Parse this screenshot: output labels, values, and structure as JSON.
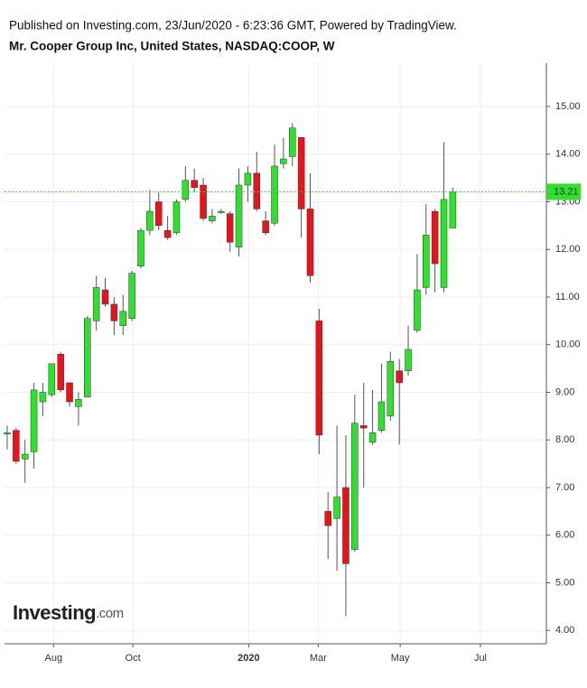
{
  "header": {
    "published": "Published on Investing.com, 23/Jun/2020 - 6:23:36 GMT, Powered by TradingView.",
    "instrument": "Mr. Cooper Group Inc, United States, NASDAQ:COOP, W"
  },
  "logo": {
    "brand": "Investing",
    "suffix": ".com"
  },
  "chart_data": {
    "type": "candlestick",
    "open": [
      8.15,
      8.2,
      7.6,
      7.75,
      8.8,
      8.95,
      9.8,
      9.2,
      8.7,
      8.9,
      10.5,
      11.15,
      10.85,
      10.4,
      10.55,
      11.65,
      12.4,
      13.0,
      12.4,
      12.35,
      13.05,
      13.45,
      13.35,
      12.6,
      12.8,
      12.75,
      12.05,
      13.35,
      13.6,
      12.6,
      12.55,
      13.8,
      13.95,
      14.35,
      12.85,
      10.5,
      6.5,
      6.35,
      7.0,
      5.7,
      8.3,
      7.95,
      8.2,
      8.5,
      9.45,
      9.45,
      10.3,
      11.2,
      12.8,
      11.2,
      12.45
    ],
    "high": [
      8.3,
      8.25,
      8.0,
      9.2,
      9.2,
      9.6,
      9.85,
      9.2,
      9.0,
      10.6,
      11.45,
      11.4,
      11.0,
      11.05,
      11.55,
      12.45,
      13.25,
      13.2,
      12.7,
      13.05,
      13.75,
      13.7,
      13.5,
      12.85,
      12.85,
      12.8,
      13.7,
      13.75,
      14.05,
      12.8,
      14.2,
      14.35,
      14.65,
      14.35,
      13.6,
      10.75,
      6.9,
      8.3,
      8.1,
      8.95,
      9.2,
      9.05,
      9.6,
      9.85,
      9.7,
      10.4,
      11.9,
      12.95,
      12.85,
      14.25,
      13.3
    ],
    "low": [
      7.8,
      7.5,
      7.1,
      7.4,
      8.5,
      8.9,
      9.0,
      8.7,
      8.3,
      8.9,
      10.3,
      10.8,
      10.2,
      10.2,
      10.5,
      11.6,
      12.3,
      12.4,
      12.2,
      12.3,
      13.0,
      13.2,
      12.6,
      12.55,
      12.75,
      11.95,
      11.85,
      13.0,
      12.8,
      12.3,
      12.5,
      13.7,
      13.75,
      12.25,
      11.3,
      7.7,
      5.5,
      5.25,
      4.3,
      5.65,
      7.0,
      7.9,
      8.15,
      8.4,
      7.9,
      9.35,
      10.25,
      11.05,
      11.1,
      11.1,
      12.45
    ],
    "close": [
      8.15,
      7.55,
      7.7,
      9.05,
      9.0,
      9.6,
      9.05,
      8.8,
      8.85,
      10.55,
      11.2,
      10.85,
      10.5,
      10.7,
      11.5,
      12.4,
      12.8,
      12.5,
      12.25,
      13.0,
      13.45,
      13.3,
      12.65,
      12.7,
      12.8,
      12.15,
      13.35,
      13.6,
      12.85,
      12.35,
      13.75,
      13.9,
      14.55,
      12.85,
      11.45,
      8.1,
      6.2,
      6.8,
      5.4,
      8.35,
      8.25,
      8.15,
      8.8,
      9.65,
      9.2,
      9.9,
      11.15,
      12.3,
      11.7,
      13.05,
      13.21
    ],
    "up_color": "#2fe02f",
    "down_color": "#e8141c",
    "last_price": 13.21,
    "ylim": [
      3.72,
      15.91
    ],
    "yticks": [
      {
        "value": 4,
        "label": "4.00"
      },
      {
        "value": 5,
        "label": "5.00"
      },
      {
        "value": 6,
        "label": "6.00"
      },
      {
        "value": 7,
        "label": "7.00"
      },
      {
        "value": 8,
        "label": "8.00"
      },
      {
        "value": 9,
        "label": "9.00"
      },
      {
        "value": 10,
        "label": "10.00"
      },
      {
        "value": 11,
        "label": "11.00"
      },
      {
        "value": 12,
        "label": "12.00"
      },
      {
        "value": 13,
        "label": "13.00"
      },
      {
        "value": 14,
        "label": "14.00"
      },
      {
        "value": 15,
        "label": "15.00"
      }
    ],
    "xlim": [
      -0.3,
      60.5
    ],
    "xticks": [
      {
        "value": 5.2,
        "label": "Aug"
      },
      {
        "value": 14.1,
        "label": "Oct"
      },
      {
        "value": 27.1,
        "label": "2020"
      },
      {
        "value": 34.9,
        "label": "Mar"
      },
      {
        "value": 44.1,
        "label": "May"
      },
      {
        "value": 53.1,
        "label": "Jul"
      }
    ],
    "grid": true
  }
}
